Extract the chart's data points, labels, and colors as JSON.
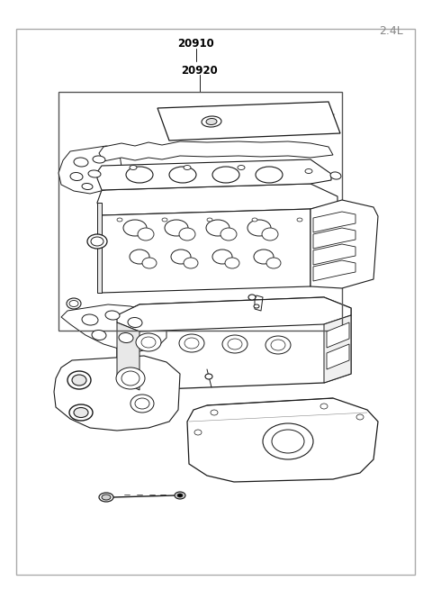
{
  "title": "2.4L",
  "label_20910": "20910",
  "label_20920": "20920",
  "bg_color": "#ffffff",
  "line_color": "#1a1a1a",
  "box_color": "#999999",
  "figsize": [
    4.8,
    6.55
  ],
  "dpi": 100
}
